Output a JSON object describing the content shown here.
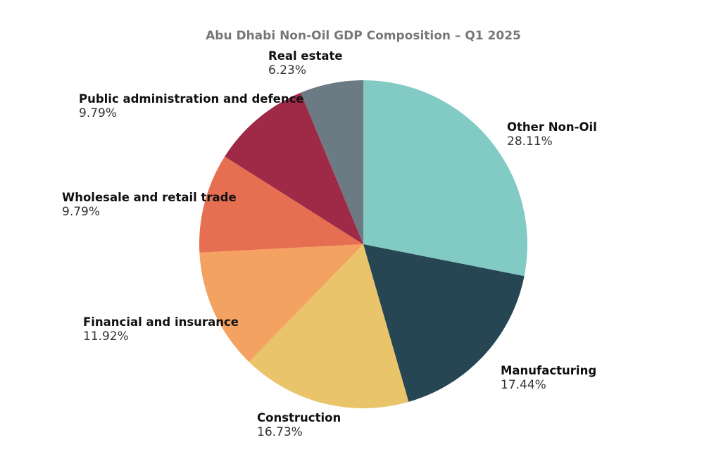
{
  "chart_data": {
    "type": "pie",
    "title": "Abu Dhabi Non-Oil GDP Composition – Q1 2025",
    "start_angle": "12 o'clock",
    "direction": "clockwise",
    "slices": [
      {
        "label": "Other Non-Oil",
        "value": 28.11,
        "display": "28.11%",
        "color": "#82CBC4"
      },
      {
        "label": "Manufacturing",
        "value": 17.44,
        "display": "17.44%",
        "color": "#264653"
      },
      {
        "label": "Construction",
        "value": 16.73,
        "display": "16.73%",
        "color": "#E9C46A"
      },
      {
        "label": "Financial and insurance",
        "value": 11.92,
        "display": "11.92%",
        "color": "#F4A261"
      },
      {
        "label": "Wholesale and retail trade",
        "value": 9.79,
        "display": "9.79%",
        "color": "#E76F51"
      },
      {
        "label": "Public administration and defence",
        "value": 9.79,
        "display": "9.79%",
        "color": "#9E2A47"
      },
      {
        "label": "Real estate",
        "value": 6.23,
        "display": "6.23%",
        "color": "#6C7A84"
      }
    ]
  }
}
